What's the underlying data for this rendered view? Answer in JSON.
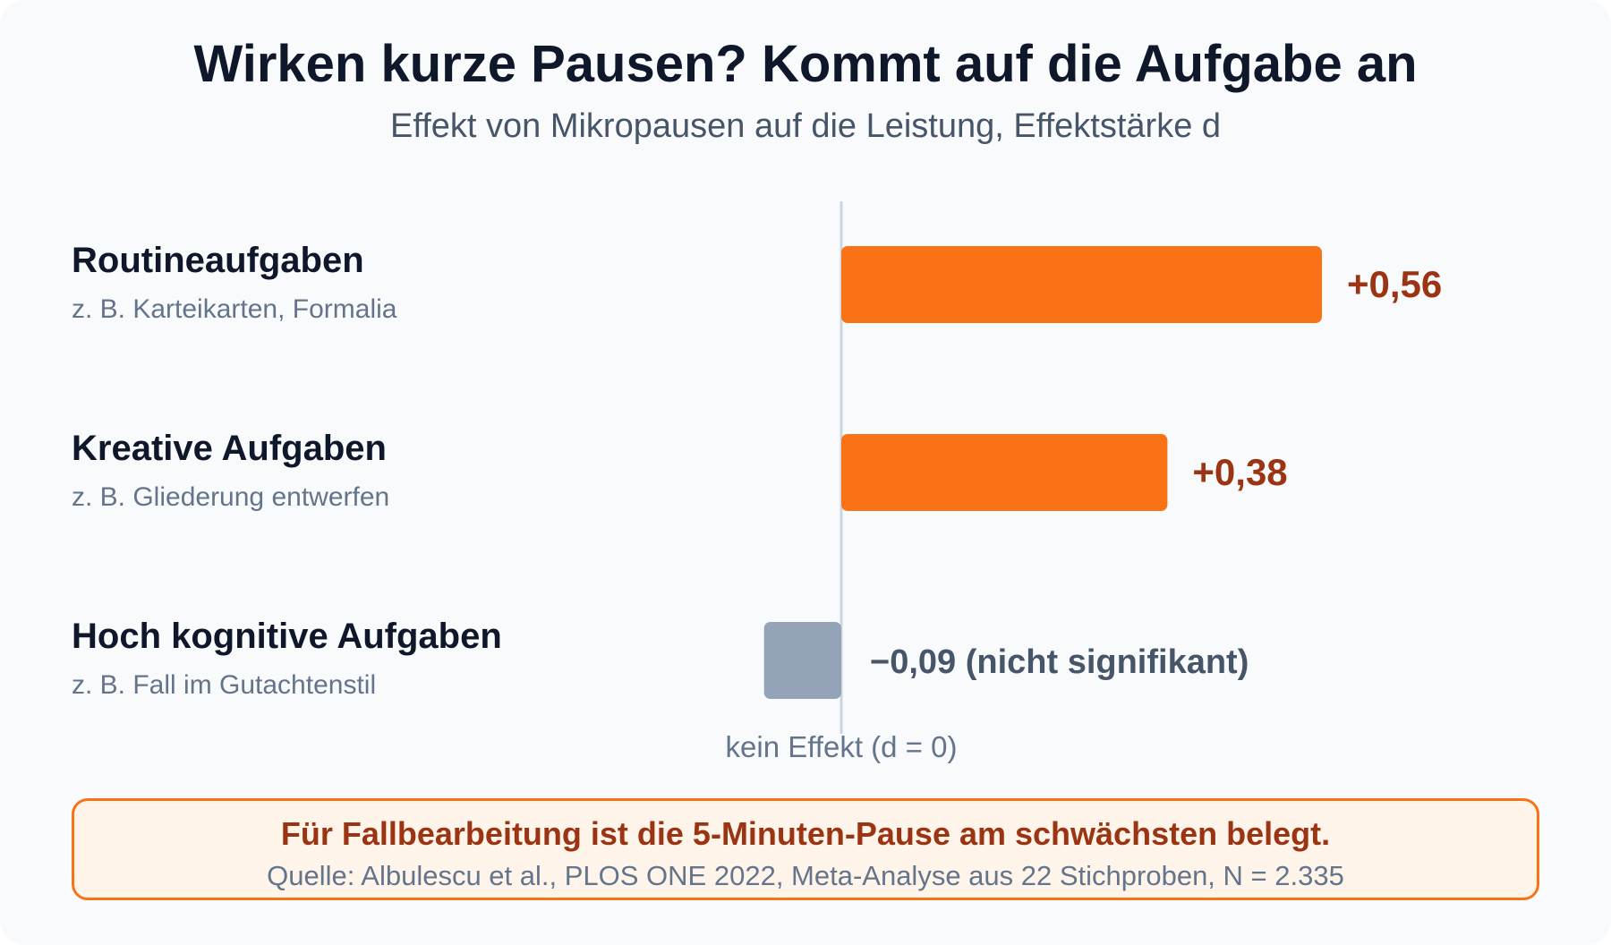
{
  "header": {
    "title": "Wirken kurze Pausen? Kommt auf die Aufgabe an",
    "subtitle": "Effekt von Mikropausen auf die Leistung, Effektstärke d"
  },
  "chart_data": {
    "type": "bar",
    "orientation": "horizontal",
    "title": "Wirken kurze Pausen? Kommt auf die Aufgabe an",
    "subtitle": "Effekt von Mikropausen auf die Leistung, Effektstärke d",
    "categories": [
      "Routineaufgaben",
      "Kreative Aufgaben",
      "Hoch kognitive Aufgaben"
    ],
    "category_notes": [
      "z. B. Karteikarten, Formalia",
      "z. B. Gliederung entwerfen",
      "z. B. Fall im Gutachtenstil"
    ],
    "values": [
      0.56,
      0.38,
      -0.09
    ],
    "value_labels": [
      "+0,56",
      "+0,38",
      "−0,09 (nicht signifikant)"
    ],
    "significant": [
      true,
      true,
      false
    ],
    "zero_line_label": "kein Effekt (d = 0)",
    "xlim": [
      -0.09,
      0.56
    ],
    "grid": false,
    "legend": "none",
    "colors": {
      "positive_bar": "#f97316",
      "positive_label": "#9a3412",
      "nonsignificant_bar": "#94a3b8",
      "nonsignificant_label": "#475569",
      "zero_line": "#cbd5e1",
      "category_title": "#0f172a",
      "category_note": "#64748b"
    }
  },
  "footer": {
    "conclusion": "Für Fallbearbeitung ist die 5-Minuten-Pause am schwächsten belegt.",
    "source": "Quelle: Albulescu et al., PLOS ONE 2022, Meta-Analyse aus 22 Stichproben, N = 2.335"
  }
}
